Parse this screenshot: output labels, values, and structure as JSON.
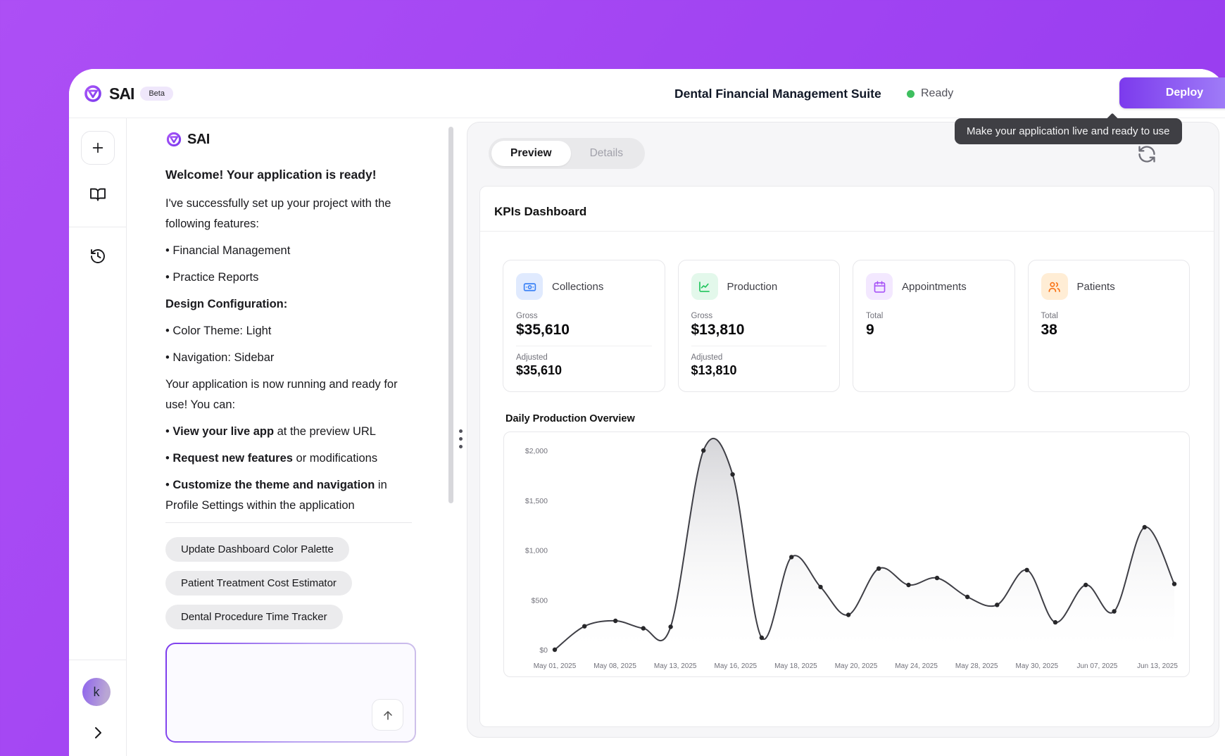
{
  "header": {
    "logo_text": "SAI",
    "beta_badge": "Beta",
    "app_title": "Dental Financial Management Suite",
    "status_text": "Ready",
    "status_color": "#3ebf5f",
    "deploy_label": "Deploy",
    "deploy_tooltip": "Make your application live and ready to use",
    "accent_color": "#8b5cf6"
  },
  "rail": {
    "icons": [
      "plus",
      "book-open",
      "history",
      "chevron-right"
    ],
    "avatar_initial": "k"
  },
  "chat": {
    "logo_text": "SAI",
    "heading": "Welcome! Your application is ready!",
    "intro": "I've successfully set up your project with the following features:",
    "features": [
      "• Financial Management",
      "• Practice Reports"
    ],
    "design_heading": "Design Configuration:",
    "design_items": [
      "• Color Theme: Light",
      "• Navigation: Sidebar"
    ],
    "running_text": "Your application is now running and ready for use! You can:",
    "actions": [
      {
        "prefix": "• ",
        "bold": "View your live app",
        "rest": " at the preview URL"
      },
      {
        "prefix": "• ",
        "bold": "Request new features",
        "rest": " or modifications"
      },
      {
        "prefix": "• ",
        "bold": "Customize the theme and navigation",
        "rest": " in Profile Settings within the application"
      }
    ],
    "suggestions": [
      "Update Dashboard Color Palette",
      "Patient Treatment Cost Estimator",
      "Dental Procedure Time Tracker"
    ],
    "composer_value": "",
    "composer_placeholder": ""
  },
  "preview": {
    "tabs": [
      {
        "label": "Preview",
        "active": true
      },
      {
        "label": "Details",
        "active": false
      }
    ],
    "dashboard_title": "KPIs Dashboard",
    "kpi_cards": [
      {
        "label": "Collections",
        "icon": "banknote",
        "accent": "#3b82f6",
        "icon_bg": "#e0eafe",
        "metrics": [
          {
            "label": "Gross",
            "value": "$35,610"
          },
          {
            "label": "Adjusted",
            "value": "$35,610"
          }
        ]
      },
      {
        "label": "Production",
        "icon": "chart-line",
        "accent": "#22c55e",
        "icon_bg": "#e3f8eb",
        "metrics": [
          {
            "label": "Gross",
            "value": "$13,810"
          },
          {
            "label": "Adjusted",
            "value": "$13,810"
          }
        ]
      },
      {
        "label": "Appointments",
        "icon": "calendar",
        "accent": "#a855f7",
        "icon_bg": "#f3e8ff",
        "metrics": [
          {
            "label": "Total",
            "value": "9"
          }
        ]
      },
      {
        "label": "Patients",
        "icon": "users",
        "accent": "#f97316",
        "icon_bg": "#ffedd5",
        "metrics": [
          {
            "label": "Total",
            "value": "38"
          }
        ]
      }
    ],
    "chart_heading": "Daily Production Overview"
  },
  "chart_data": {
    "type": "line",
    "title": "Daily Production Overview",
    "xlabel": "",
    "ylabel": "",
    "ylim": [
      0,
      2000
    ],
    "grid": false,
    "legend": false,
    "line_color": "#3f3f46",
    "point_color": "#27272a",
    "y_ticks": [
      {
        "v": 0,
        "label": "$0"
      },
      {
        "v": 500,
        "label": "$500"
      },
      {
        "v": 1000,
        "label": "$1,000"
      },
      {
        "v": 1500,
        "label": "$1,500"
      },
      {
        "v": 2000,
        "label": "$2,000"
      }
    ],
    "x_tick_labels": [
      "May 01, 2025",
      "May 08, 2025",
      "May 13, 2025",
      "May 16, 2025",
      "May 18, 2025",
      "May 20, 2025",
      "May 24, 2025",
      "May 28, 2025",
      "May 30, 2025",
      "Jun 07, 2025",
      "Jun 13, 2025"
    ],
    "points_x_pct_value": [
      [
        0,
        0
      ],
      [
        4.8,
        235
      ],
      [
        9.8,
        290
      ],
      [
        14.3,
        215
      ],
      [
        18.7,
        230
      ],
      [
        24,
        2000
      ],
      [
        28.7,
        1760
      ],
      [
        33.4,
        120
      ],
      [
        38.2,
        930
      ],
      [
        42.9,
        630
      ],
      [
        47.4,
        350
      ],
      [
        52.3,
        815
      ],
      [
        57.1,
        650
      ],
      [
        61.7,
        720
      ],
      [
        66.6,
        530
      ],
      [
        71.4,
        450
      ],
      [
        76.2,
        800
      ],
      [
        80.8,
        275
      ],
      [
        85.7,
        650
      ],
      [
        90.3,
        385
      ],
      [
        95.2,
        1230
      ],
      [
        100,
        660
      ]
    ]
  }
}
